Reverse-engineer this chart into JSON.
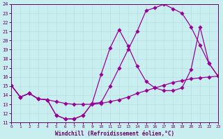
{
  "xlabel": "Windchill (Refroidissement éolien,°C)",
  "bg_color": "#c8eef0",
  "grid_color": "#b8e0e4",
  "line_color": "#990099",
  "xlim": [
    0,
    23
  ],
  "ylim": [
    11,
    24
  ],
  "xticks": [
    0,
    1,
    2,
    3,
    4,
    5,
    6,
    7,
    8,
    9,
    10,
    11,
    12,
    13,
    14,
    15,
    16,
    17,
    18,
    19,
    20,
    21,
    22,
    23
  ],
  "yticks": [
    11,
    12,
    13,
    14,
    15,
    16,
    17,
    18,
    19,
    20,
    21,
    22,
    23,
    24
  ],
  "line1_x": [
    0,
    1,
    2,
    3,
    4,
    5,
    6,
    7,
    8,
    9,
    10,
    11,
    12,
    13,
    14,
    15,
    16,
    17,
    18,
    19,
    20,
    21,
    22,
    23
  ],
  "line1_y": [
    15.1,
    13.8,
    14.2,
    13.6,
    13.5,
    13.3,
    13.1,
    13.0,
    13.0,
    13.0,
    13.1,
    13.3,
    13.5,
    13.8,
    14.2,
    14.5,
    14.8,
    15.1,
    15.4,
    15.6,
    15.8,
    15.9,
    16.0,
    16.1
  ],
  "line2_x": [
    0,
    1,
    2,
    3,
    4,
    5,
    6,
    7,
    8,
    9,
    10,
    11,
    12,
    13,
    14,
    15,
    16,
    17,
    18,
    19,
    20,
    21,
    22,
    23
  ],
  "line2_y": [
    15.1,
    13.8,
    14.2,
    13.6,
    13.5,
    11.8,
    11.4,
    11.4,
    11.8,
    13.1,
    16.3,
    19.2,
    21.2,
    19.4,
    17.2,
    15.5,
    14.8,
    14.5,
    14.5,
    14.8,
    16.8,
    21.5,
    17.5,
    16.1
  ],
  "line3_x": [
    0,
    1,
    2,
    3,
    4,
    5,
    6,
    7,
    8,
    9,
    10,
    11,
    12,
    13,
    14,
    15,
    16,
    17,
    18,
    19,
    20,
    21,
    22,
    23
  ],
  "line3_y": [
    15.1,
    13.8,
    14.2,
    13.6,
    13.5,
    11.8,
    11.4,
    11.4,
    11.8,
    13.1,
    13.2,
    15.0,
    17.0,
    19.0,
    21.0,
    23.3,
    23.6,
    24.0,
    23.5,
    23.0,
    21.5,
    19.5,
    17.5,
    16.1
  ]
}
